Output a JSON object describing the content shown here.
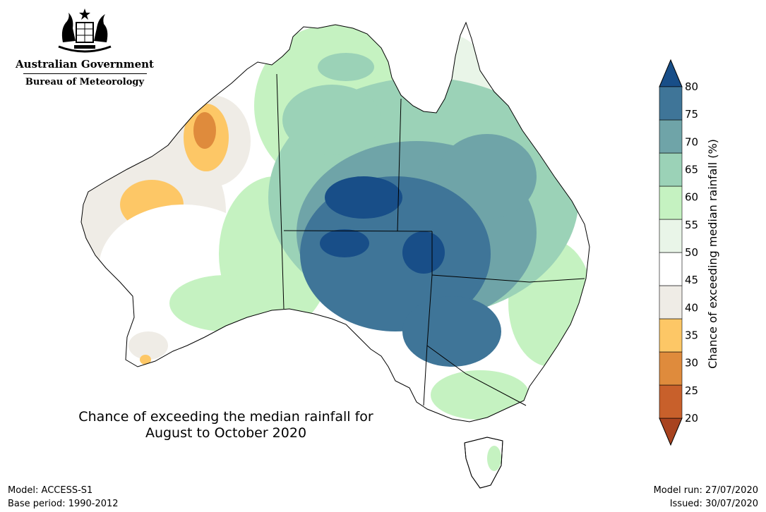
{
  "header": {
    "government": "Australian Government",
    "agency": "Bureau of Meteorology"
  },
  "map": {
    "title_line1": "Chance of exceeding the median rainfall for",
    "title_line2": "August to October 2020"
  },
  "footer": {
    "model": "Model: ACCESS-S1",
    "base_period": "Base period: 1990-2012",
    "model_run": "Model run: 27/07/2020",
    "issued": "Issued: 30/07/2020"
  },
  "legend": {
    "label": "Chance of exceeding median rainfall (%)",
    "ticks": [
      "20",
      "25",
      "30",
      "35",
      "40",
      "45",
      "50",
      "55",
      "60",
      "65",
      "70",
      "75",
      "80"
    ],
    "colors": [
      "#a8431f",
      "#c8602b",
      "#df8b3c",
      "#fdc766",
      "#efece6",
      "#ffffff",
      "#e9f5e8",
      "#c5f2c1",
      "#9bd2b7",
      "#6fa4a8",
      "#3f7598",
      "#184e88"
    ]
  }
}
